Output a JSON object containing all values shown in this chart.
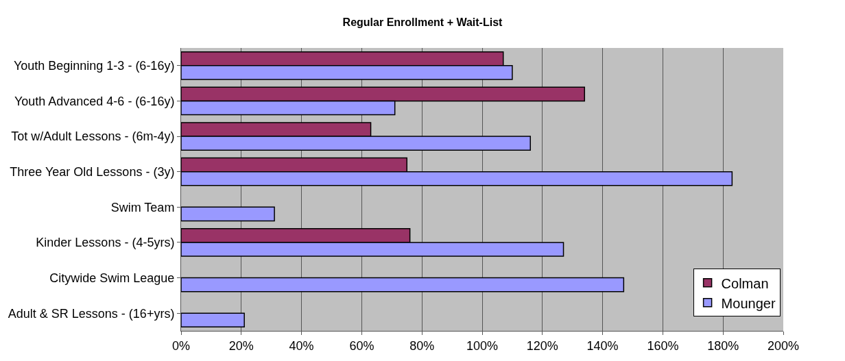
{
  "chart_data": {
    "type": "bar",
    "orientation": "horizontal",
    "title": "Regular Enrollment + Wait-List",
    "categories": [
      "Youth Beginning 1-3 - (6-16y)",
      "Youth Advanced 4-6 - (6-16y)",
      "Tot w/Adult Lessons - (6m-4y)",
      "Three Year Old Lessons - (3y)",
      "Swim Team",
      "Kinder Lessons - (4-5yrs)",
      "Citywide Swim League",
      "Adult & SR Lessons - (16+yrs)"
    ],
    "series": [
      {
        "name": "Colman",
        "color": "#993366",
        "values": [
          107,
          134,
          63,
          75,
          null,
          76,
          null,
          null
        ]
      },
      {
        "name": "Mounger",
        "color": "#9999ff",
        "values": [
          110,
          71,
          116,
          183,
          31,
          127,
          147,
          21
        ]
      }
    ],
    "xlim": [
      0,
      200
    ],
    "xticks": [
      {
        "value": 0,
        "label": "0%"
      },
      {
        "value": 20,
        "label": "20%"
      },
      {
        "value": 40,
        "label": "40%"
      },
      {
        "value": 60,
        "label": "60%"
      },
      {
        "value": 80,
        "label": "80%"
      },
      {
        "value": 100,
        "label": "100%"
      },
      {
        "value": 120,
        "label": "120%"
      },
      {
        "value": 140,
        "label": "140%"
      },
      {
        "value": 160,
        "label": "160%"
      },
      {
        "value": 180,
        "label": "180%"
      },
      {
        "value": 200,
        "label": "200%"
      }
    ],
    "grid": "x",
    "legend": "bottom right"
  }
}
